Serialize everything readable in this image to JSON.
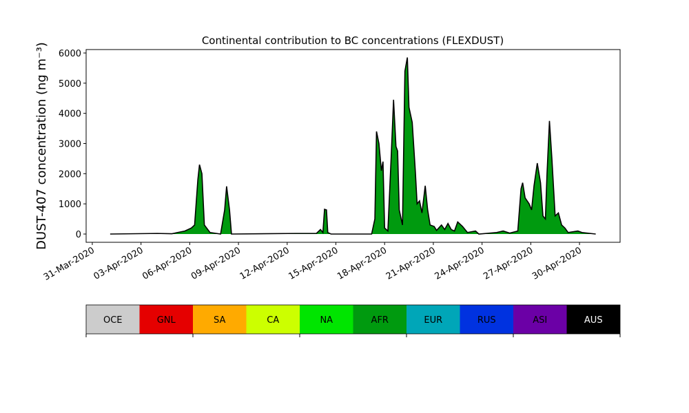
{
  "chart_data": {
    "type": "area",
    "title": "Continental contribution to BC concentrations (FLEXDUST)",
    "y_label": "DUST-407 concentration (ng m⁻³)",
    "x": [
      1.1,
      4.0,
      4.9,
      5.7,
      6.1,
      6.3,
      6.5,
      6.6,
      6.75,
      6.9,
      7.25,
      7.9,
      8.15,
      8.27,
      8.45,
      8.57,
      12.55,
      13.8,
      14.05,
      14.2,
      14.3,
      14.42,
      14.5,
      14.7,
      17.2,
      17.4,
      17.5,
      17.65,
      17.8,
      17.9,
      18.0,
      18.2,
      18.4,
      18.55,
      18.7,
      18.8,
      18.9,
      19.1,
      19.25,
      19.4,
      19.5,
      19.7,
      19.9,
      20.0,
      20.15,
      20.3,
      20.5,
      20.65,
      20.8,
      21.05,
      21.2,
      21.5,
      21.7,
      21.9,
      22.1,
      22.3,
      22.5,
      22.8,
      23.1,
      23.6,
      23.8,
      24.9,
      25.3,
      25.7,
      26.2,
      26.4,
      26.5,
      26.65,
      26.9,
      27.05,
      27.2,
      27.4,
      27.6,
      27.75,
      27.9,
      28.0,
      28.15,
      28.3,
      28.5,
      28.7,
      28.9,
      29.1,
      29.3,
      29.9,
      30.15,
      31.0
    ],
    "series": [
      {
        "name": "AFR",
        "color": "#009a0f",
        "values": [
          0,
          20,
          10,
          100,
          200,
          300,
          1800,
          2300,
          2000,
          300,
          50,
          0,
          800,
          1580,
          800,
          0,
          20,
          20,
          150,
          50,
          820,
          800,
          50,
          0,
          0,
          500,
          3400,
          3000,
          2100,
          2400,
          200,
          100,
          2500,
          4450,
          2900,
          2750,
          800,
          300,
          5400,
          5850,
          4200,
          3700,
          2000,
          1000,
          1100,
          700,
          1600,
          800,
          300,
          250,
          120,
          300,
          150,
          350,
          150,
          100,
          400,
          250,
          50,
          100,
          0,
          50,
          100,
          30,
          100,
          1500,
          1700,
          1200,
          1000,
          800,
          1600,
          2350,
          1700,
          600,
          500,
          2000,
          3750,
          2500,
          600,
          700,
          300,
          200,
          50,
          100,
          50,
          0
        ]
      }
    ],
    "xlim": [
      -0.38,
      32.5
    ],
    "xticks": [
      {
        "value": 0,
        "label": "31-Mar-2020"
      },
      {
        "value": 3,
        "label": "03-Apr-2020"
      },
      {
        "value": 6,
        "label": "06-Apr-2020"
      },
      {
        "value": 9,
        "label": "09-Apr-2020"
      },
      {
        "value": 12,
        "label": "12-Apr-2020"
      },
      {
        "value": 15,
        "label": "15-Apr-2020"
      },
      {
        "value": 18,
        "label": "18-Apr-2020"
      },
      {
        "value": 21,
        "label": "21-Apr-2020"
      },
      {
        "value": 24,
        "label": "24-Apr-2020"
      },
      {
        "value": 27,
        "label": "27-Apr-2020"
      },
      {
        "value": 30,
        "label": "30-Apr-2020"
      }
    ],
    "ylim": [
      -274,
      6114
    ],
    "yticks": [
      0,
      1000,
      2000,
      3000,
      4000,
      5000,
      6000
    ],
    "colorbar": {
      "labels": [
        "OCE",
        "GNL",
        "SA",
        "CA",
        "NA",
        "AFR",
        "EUR",
        "RUS",
        "ASI",
        "AUS"
      ],
      "colors": [
        "#cccccc",
        "#e50000",
        "#ffaa00",
        "#ccff00",
        "#00e500",
        "#009a0f",
        "#00a6b8",
        "#0032e0",
        "#6b00a6",
        "#000000"
      ]
    }
  }
}
